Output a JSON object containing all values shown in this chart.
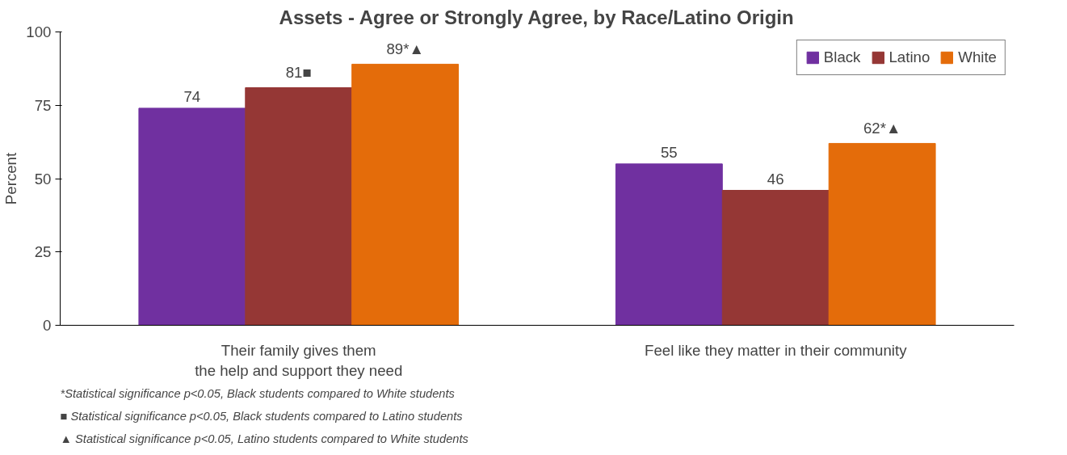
{
  "chart_data": {
    "type": "bar",
    "title": "Assets - Agree or Strongly Agree, by Race/Latino Origin",
    "ylabel": "Percent",
    "categories": [
      "Their family gives them\nthe help and support they need",
      "Feel like they matter in their community"
    ],
    "series": [
      {
        "name": "Black",
        "color": "#7030a0",
        "values": [
          74,
          55
        ],
        "value_labels": [
          "74",
          "55"
        ]
      },
      {
        "name": "Latino",
        "color": "#953735",
        "values": [
          81,
          46
        ],
        "value_labels": [
          "81■",
          "46"
        ]
      },
      {
        "name": "White",
        "color": "#e46c0a",
        "values": [
          89,
          62
        ],
        "value_labels": [
          "89*▲",
          "62*▲"
        ]
      }
    ],
    "ylim": [
      0,
      100
    ],
    "yticks": [
      0,
      25,
      50,
      75,
      100
    ],
    "grid": false,
    "legend": "top right",
    "annotations": [
      "*Statistical significance p<0.05, Black students compared to White students",
      "■ Statistical significance p<0.05, Black students compared to Latino students",
      "▲ Statistical significance p<0.05, Latino students compared to White students"
    ]
  }
}
